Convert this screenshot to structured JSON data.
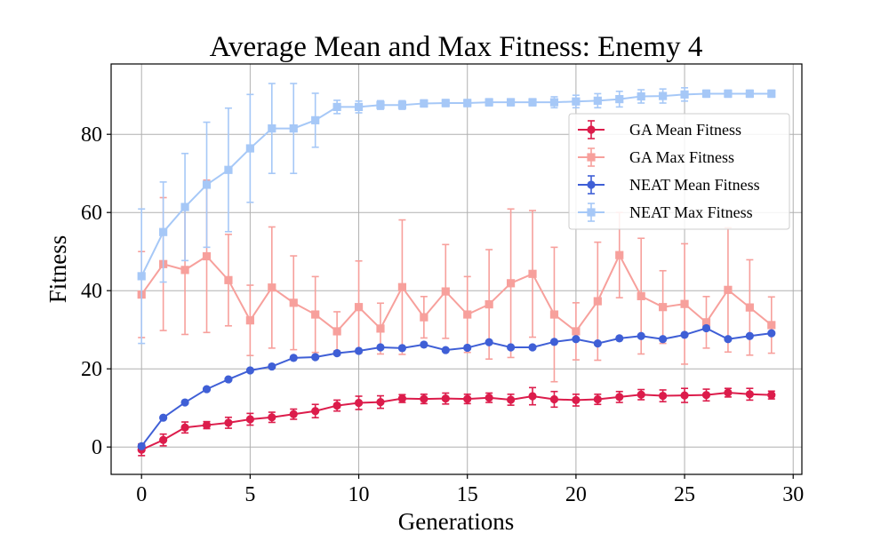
{
  "chart_data": {
    "type": "line",
    "title": "Average Mean and Max Fitness: Enemy 4",
    "xlabel": "Generations",
    "ylabel": "Fitness",
    "xlim": [
      -1.4,
      30.4
    ],
    "ylim": [
      -7,
      98
    ],
    "xticks": [
      0,
      5,
      10,
      15,
      20,
      25,
      30
    ],
    "yticks": [
      0,
      20,
      40,
      60,
      80
    ],
    "grid": true,
    "legend_position": "upper-right",
    "x": [
      0,
      1,
      2,
      3,
      4,
      5,
      6,
      7,
      8,
      9,
      10,
      11,
      12,
      13,
      14,
      15,
      16,
      17,
      18,
      19,
      20,
      21,
      22,
      23,
      24,
      25,
      26,
      27,
      28,
      29
    ],
    "series": [
      {
        "name": "GA Mean Fitness",
        "color": "#dc1c4b",
        "marker": "circle",
        "values": [
          -0.7,
          1.8,
          5.0,
          5.6,
          6.2,
          7.1,
          7.6,
          8.4,
          9.2,
          10.6,
          11.3,
          11.5,
          12.4,
          12.3,
          12.4,
          12.3,
          12.6,
          12.1,
          13.0,
          12.2,
          12.0,
          12.2,
          12.8,
          13.4,
          13.1,
          13.2,
          13.3,
          13.9,
          13.5,
          13.3
        ],
        "errors": [
          1.5,
          1.5,
          1.4,
          0.9,
          1.4,
          1.5,
          1.3,
          1.3,
          1.7,
          1.4,
          1.7,
          1.6,
          1.0,
          1.2,
          1.4,
          1.2,
          1.2,
          1.4,
          2.2,
          2.0,
          1.5,
          1.3,
          1.4,
          1.3,
          1.5,
          1.8,
          1.5,
          1.1,
          1.5,
          1.0
        ]
      },
      {
        "name": "GA Max Fitness",
        "color": "#f7a09c",
        "marker": "square",
        "values": [
          39.0,
          46.8,
          45.3,
          48.8,
          42.7,
          32.4,
          40.8,
          36.9,
          33.9,
          29.6,
          35.8,
          30.3,
          40.9,
          33.2,
          39.8,
          33.9,
          36.5,
          41.9,
          44.3,
          33.9,
          29.6,
          37.3,
          49.1,
          38.6,
          35.8,
          36.6,
          31.9,
          40.2,
          35.7,
          31.2
        ],
        "errors": [
          11.0,
          17.0,
          16.5,
          19.5,
          11.7,
          9.0,
          15.5,
          12.0,
          9.7,
          5.0,
          11.8,
          6.5,
          17.2,
          5.3,
          12.0,
          9.7,
          14.0,
          19.0,
          16.2,
          17.2,
          7.3,
          15.1,
          10.9,
          14.8,
          9.3,
          15.4,
          6.6,
          15.9,
          12.2,
          7.2
        ]
      },
      {
        "name": "NEAT Mean Fitness",
        "color": "#3f5fd6",
        "marker": "circle",
        "values": [
          0.2,
          7.5,
          11.4,
          14.8,
          17.3,
          19.6,
          20.6,
          22.8,
          23.0,
          24.0,
          24.6,
          25.5,
          25.3,
          26.2,
          24.8,
          25.4,
          26.8,
          25.5,
          25.5,
          26.9,
          27.6,
          26.5,
          27.8,
          28.4,
          27.6,
          28.7,
          30.4,
          27.6,
          28.4,
          29.1
        ]
      },
      {
        "name": "NEAT Max Fitness",
        "color": "#a6c8f7",
        "marker": "square",
        "values": [
          43.7,
          55.0,
          61.4,
          67.1,
          70.9,
          76.4,
          81.5,
          81.5,
          83.6,
          87.0,
          87.0,
          87.5,
          87.5,
          87.9,
          88.0,
          88.0,
          88.2,
          88.2,
          88.2,
          88.2,
          88.4,
          88.6,
          89.0,
          89.7,
          89.8,
          90.2,
          90.4,
          90.4,
          90.4,
          90.4
        ],
        "errors": [
          17.2,
          12.8,
          13.7,
          16.0,
          15.8,
          13.8,
          11.5,
          11.5,
          6.9,
          1.7,
          1.5,
          1.1,
          1.1,
          0.9,
          0.9,
          0.9,
          0.9,
          0.9,
          0.9,
          1.4,
          1.6,
          1.8,
          2.0,
          1.7,
          1.8,
          1.7,
          0.9,
          0.9,
          0.9,
          0.9
        ]
      }
    ]
  }
}
